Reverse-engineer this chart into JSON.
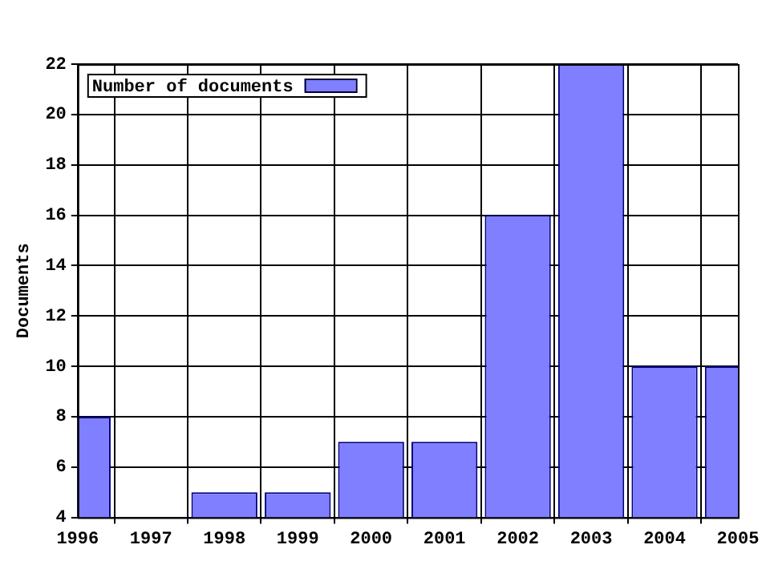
{
  "chart_data": {
    "type": "bar",
    "ylabel": "Documents",
    "categories": [
      "1996",
      "1997",
      "1998",
      "1999",
      "2000",
      "2001",
      "2002",
      "2003",
      "2004",
      "2005"
    ],
    "series": [
      {
        "name": "Number of documents",
        "color": "#7f7fff",
        "values": [
          8,
          null,
          5,
          5,
          7,
          7,
          16,
          22,
          10,
          10
        ]
      }
    ],
    "ylim": [
      4,
      22
    ],
    "yticks": [
      4,
      6,
      8,
      10,
      12,
      14,
      16,
      18,
      20,
      22
    ],
    "grid": true,
    "legend": "top left"
  }
}
